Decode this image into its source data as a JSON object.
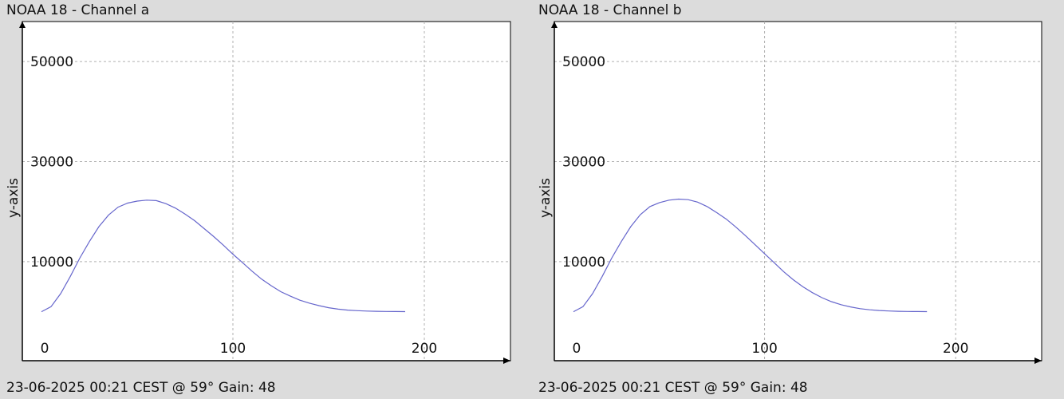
{
  "colors": {
    "background": "#dcdcdc",
    "plot_background": "#ffffff",
    "series": "#6666cc",
    "grid": "#b0b0b0",
    "axis": "#000000"
  },
  "chart_data": [
    {
      "type": "line",
      "title": "NOAA 18 - Channel a",
      "footer": "23-06-2025 00:21 CEST @ 59° Gain: 48",
      "xlabel": "",
      "ylabel": "y-axis",
      "x_ticks": [
        0,
        100,
        200
      ],
      "y_ticks": [
        10000,
        30000,
        50000
      ],
      "xlim": [
        -10,
        245
      ],
      "ylim": [
        -9800,
        58000
      ],
      "grid": true,
      "series": [
        {
          "x": [
            0,
            5,
            10,
            15,
            20,
            25,
            30,
            35,
            40,
            45,
            50,
            55,
            60,
            65,
            70,
            75,
            80,
            85,
            90,
            95,
            100,
            105,
            110,
            115,
            120,
            125,
            130,
            135,
            140,
            145,
            150,
            155,
            160,
            165,
            170,
            175,
            180,
            185,
            190
          ],
          "y": [
            0,
            1000,
            3600,
            7000,
            10700,
            14000,
            17000,
            19300,
            20900,
            21700,
            22100,
            22300,
            22200,
            21600,
            20700,
            19500,
            18200,
            16600,
            15000,
            13300,
            11500,
            9800,
            8100,
            6500,
            5200,
            4000,
            3100,
            2300,
            1700,
            1200,
            800,
            500,
            320,
            200,
            120,
            70,
            40,
            20,
            10
          ]
        }
      ]
    },
    {
      "type": "line",
      "title": "NOAA 18 - Channel b",
      "footer": "23-06-2025 00:21 CEST @ 59° Gain: 48",
      "xlabel": "",
      "ylabel": "y-axis",
      "x_ticks": [
        0,
        100,
        200
      ],
      "y_ticks": [
        10000,
        30000,
        50000
      ],
      "xlim": [
        -10,
        245
      ],
      "ylim": [
        -9800,
        58000
      ],
      "grid": true,
      "series": [
        {
          "x": [
            0,
            5,
            10,
            15,
            20,
            25,
            30,
            35,
            40,
            45,
            50,
            55,
            60,
            65,
            70,
            75,
            80,
            85,
            90,
            95,
            100,
            105,
            110,
            115,
            120,
            125,
            130,
            135,
            140,
            145,
            150,
            155,
            160,
            165,
            170,
            175,
            180,
            185
          ],
          "y": [
            0,
            1000,
            3600,
            7000,
            10700,
            14000,
            17000,
            19400,
            21000,
            21800,
            22300,
            22500,
            22400,
            21900,
            21000,
            19800,
            18500,
            16900,
            15200,
            13400,
            11600,
            9800,
            8000,
            6400,
            5000,
            3800,
            2800,
            2000,
            1400,
            950,
            600,
            380,
            230,
            140,
            80,
            40,
            20,
            10
          ]
        }
      ]
    }
  ]
}
